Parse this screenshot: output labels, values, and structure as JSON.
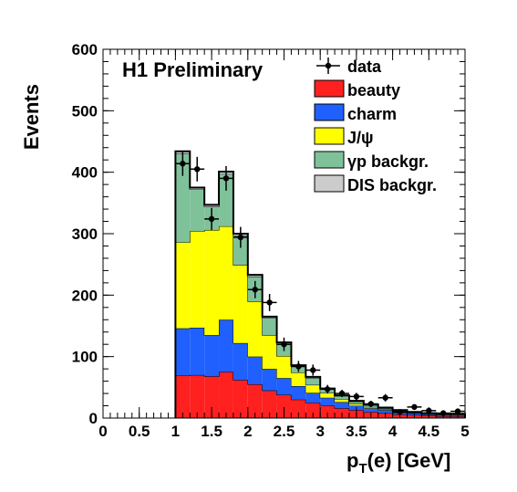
{
  "chart_data": {
    "type": "bar",
    "stacked": true,
    "annotation": "H1 Preliminary",
    "xlabel": "p",
    "xlabel_subscript": "T",
    "xlabel_suffix": "(e) [GeV]",
    "ylabel": "Events",
    "xlim": [
      0,
      5
    ],
    "ylim": [
      0,
      600
    ],
    "grid": false,
    "legend_position": "top-right",
    "x_ticks": [
      "0",
      "0.5",
      "1",
      "1.5",
      "2",
      "2.5",
      "3",
      "3.5",
      "4",
      "4.5",
      "5"
    ],
    "y_ticks": [
      "0",
      "100",
      "200",
      "300",
      "400",
      "500",
      "600"
    ],
    "bin_edges": [
      1.0,
      1.2,
      1.4,
      1.6,
      1.8,
      2.0,
      2.2,
      2.4,
      2.6,
      2.8,
      3.0,
      3.2,
      3.4,
      3.6,
      3.8,
      4.0,
      4.2,
      4.4,
      4.6,
      4.8,
      5.0
    ],
    "series": [
      {
        "name": "beauty",
        "color": "#ff2020",
        "values": [
          69,
          70,
          68,
          75,
          62,
          55,
          45,
          38,
          30,
          25,
          20,
          16,
          13,
          10,
          8,
          6,
          5,
          4,
          3,
          3
        ]
      },
      {
        "name": "charm",
        "color": "#2060ff",
        "values": [
          77,
          77,
          67,
          85,
          60,
          45,
          35,
          27,
          22,
          16,
          13,
          10,
          7,
          6,
          5,
          3,
          3,
          2,
          2,
          2
        ]
      },
      {
        "name": "J/ψ",
        "color": "#ffff00",
        "values": [
          140,
          157,
          171,
          152,
          127,
          90,
          55,
          36,
          22,
          13,
          8,
          5,
          3,
          2,
          1,
          1,
          0,
          0,
          0,
          0
        ]
      },
      {
        "name": "γp backgr.",
        "color": "#7fc29a",
        "values": [
          144,
          68,
          38,
          85,
          48,
          40,
          28,
          20,
          10,
          11,
          6,
          5,
          4,
          3,
          2,
          2,
          1,
          1,
          1,
          1
        ]
      },
      {
        "name": "DIS backgr.",
        "color": "#cccccc",
        "values": [
          4,
          3,
          3,
          4,
          3,
          3,
          2,
          2,
          2,
          2,
          1,
          1,
          1,
          1,
          1,
          1,
          1,
          1,
          1,
          1
        ]
      }
    ],
    "data": {
      "name": "data",
      "x": [
        1.1,
        1.3,
        1.5,
        1.7,
        1.9,
        2.1,
        2.3,
        2.5,
        2.7,
        2.9,
        3.1,
        3.3,
        3.5,
        3.7,
        3.9,
        4.1,
        4.3,
        4.5,
        4.7,
        4.9
      ],
      "y": [
        414,
        405,
        324,
        390,
        294,
        209,
        188,
        120,
        84,
        78,
        47,
        40,
        35,
        23,
        33,
        10,
        18,
        12,
        8,
        11
      ],
      "err": [
        20,
        20,
        18,
        20,
        17,
        14,
        14,
        11,
        9,
        9,
        7,
        6,
        6,
        5,
        6,
        3,
        4,
        3,
        3,
        3
      ]
    }
  }
}
